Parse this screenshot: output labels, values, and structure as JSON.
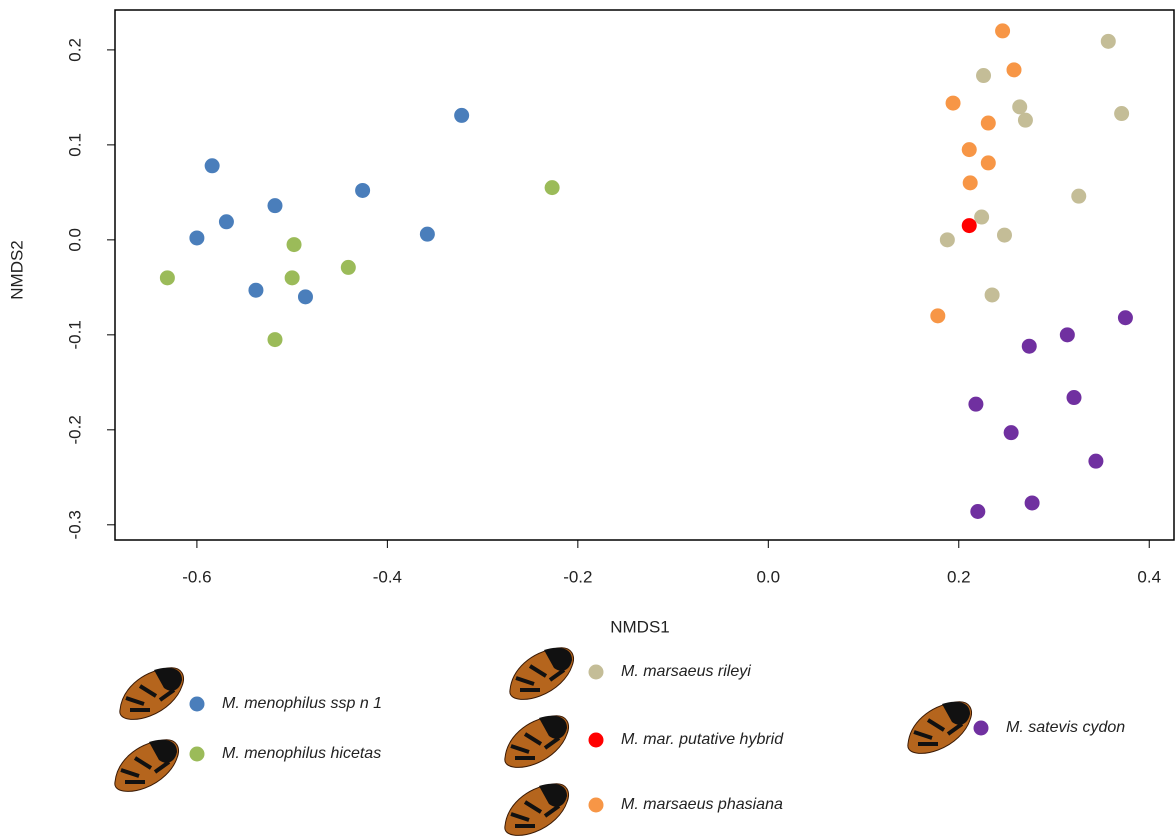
{
  "chart_data": {
    "type": "scatter",
    "xlabel": "NMDS1",
    "ylabel": "NMDS2",
    "xlim": [
      -0.686,
      0.426
    ],
    "ylim": [
      -0.316,
      0.242
    ],
    "xticks": [
      -0.6,
      -0.4,
      -0.2,
      {
        "value": 0,
        "label": "0.0"
      },
      0.2,
      0.4
    ],
    "yticks": [
      -0.3,
      -0.2,
      -0.1,
      {
        "value": 0,
        "label": "0.0"
      },
      0.1,
      0.2
    ],
    "series": [
      {
        "name": "M. menophilus ssp n 1",
        "color": "#4a7ebb",
        "x": [
          -0.584,
          -0.6,
          -0.569,
          -0.518,
          -0.538,
          -0.486,
          -0.426,
          -0.358,
          -0.322
        ],
        "values": [
          0.078,
          0.002,
          0.019,
          0.036,
          -0.053,
          -0.06,
          0.052,
          0.006,
          0.131
        ]
      },
      {
        "name": "M. menophilus hicetas",
        "color": "#9bbb59",
        "x": [
          -0.631,
          -0.498,
          -0.5,
          -0.441,
          -0.518,
          -0.227
        ],
        "values": [
          -0.04,
          -0.005,
          -0.04,
          -0.029,
          -0.105,
          0.055
        ]
      },
      {
        "name": "M. marsaeus rileyi",
        "color": "#c4bd97",
        "x": [
          0.357,
          0.226,
          0.264,
          0.27,
          0.371,
          0.326,
          0.224,
          0.248,
          0.188,
          0.235
        ],
        "values": [
          0.209,
          0.173,
          0.14,
          0.126,
          0.133,
          0.046,
          0.024,
          0.005,
          0.0,
          -0.058
        ]
      },
      {
        "name": "M. mar. putative hybrid",
        "color": "#ff0000",
        "x": [
          0.211
        ],
        "values": [
          0.015
        ]
      },
      {
        "name": "M. marsaeus phasiana",
        "color": "#f79646",
        "x": [
          0.246,
          0.258,
          0.194,
          0.231,
          0.211,
          0.231,
          0.212,
          0.178
        ],
        "values": [
          0.22,
          0.179,
          0.144,
          0.123,
          0.095,
          0.081,
          0.06,
          -0.08
        ]
      },
      {
        "name": "M. satevis cydon",
        "color": "#7030a0",
        "x": [
          0.375,
          0.314,
          0.274,
          0.218,
          0.321,
          0.255,
          0.344,
          0.277,
          0.22
        ],
        "values": [
          -0.082,
          -0.1,
          -0.112,
          -0.173,
          -0.166,
          -0.203,
          -0.233,
          -0.277,
          -0.286
        ]
      }
    ]
  }
}
